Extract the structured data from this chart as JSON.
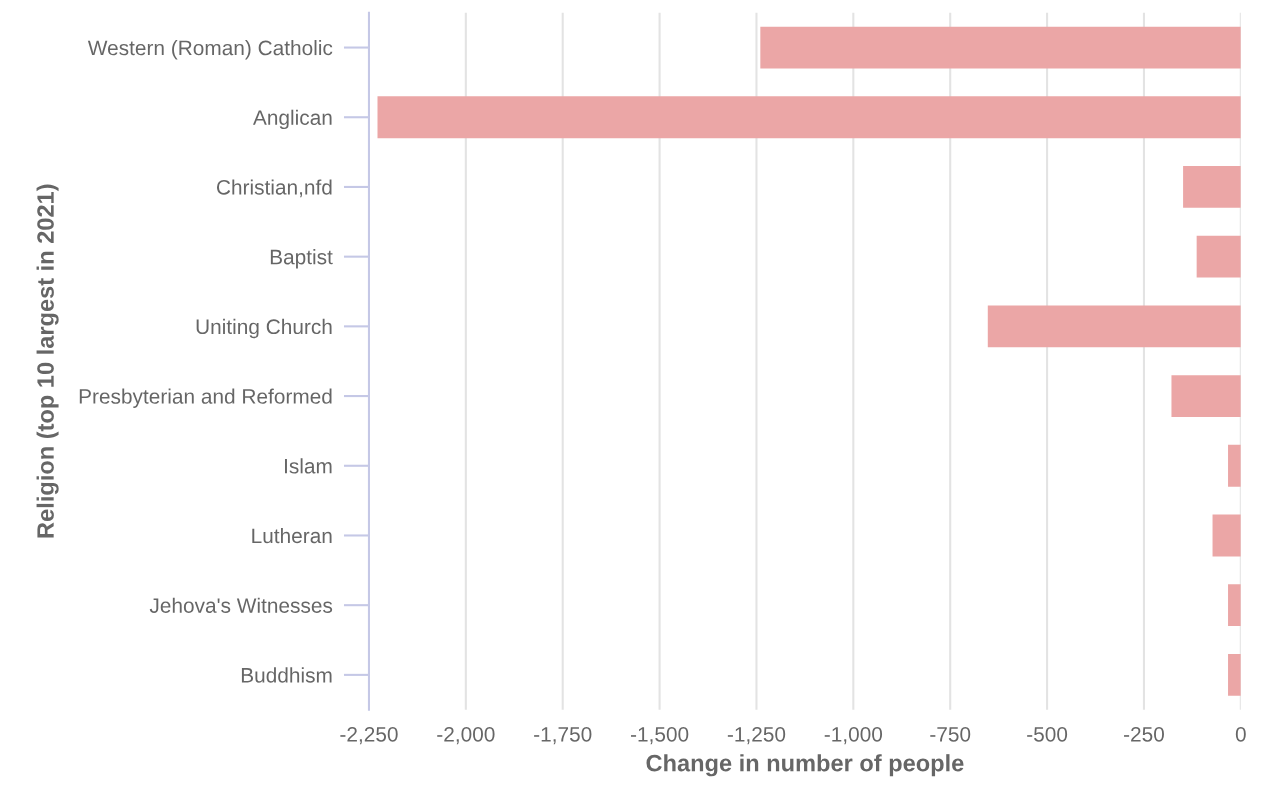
{
  "chart_data": {
    "type": "bar",
    "orientation": "horizontal",
    "xlabel": "Change in number of people",
    "ylabel": "Religion (top 10 largest in 2021)",
    "categories": [
      "Western (Roman) Catholic",
      "Anglican",
      "Christian,nfd",
      "Baptist",
      "Uniting Church",
      "Presbyterian and Reformed",
      "Islam",
      "Lutheran",
      "Jehova's Witnesses",
      "Buddhism"
    ],
    "values": [
      -1240,
      -2228,
      -149,
      -114,
      -653,
      -179,
      -33,
      -73,
      -33,
      -33
    ],
    "color": "#eba6a6",
    "xlim": [
      -2250,
      0
    ],
    "xticks": [
      {
        "value": -2250,
        "label": "-2,250"
      },
      {
        "value": -2000,
        "label": "-2,000"
      },
      {
        "value": -1750,
        "label": "-1,750"
      },
      {
        "value": -1500,
        "label": "-1,500"
      },
      {
        "value": -1250,
        "label": "-1,250"
      },
      {
        "value": -1000,
        "label": "-1,000"
      },
      {
        "value": -750,
        "label": "-750"
      },
      {
        "value": -500,
        "label": "-500"
      },
      {
        "value": -250,
        "label": "-250"
      },
      {
        "value": 0,
        "label": "0"
      }
    ],
    "grid": "x",
    "legend": false
  }
}
